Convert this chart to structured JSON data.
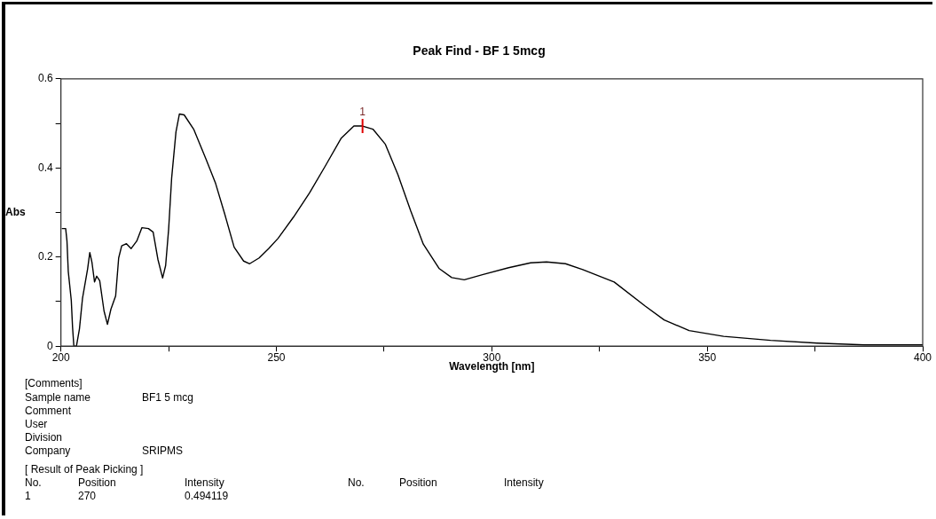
{
  "chart_data": {
    "type": "line",
    "title": "Peak Find - BF 1 5mcg",
    "xlabel": "Wavelength [nm]",
    "ylabel": "Abs",
    "x": [
      200.2,
      201.1,
      201.4,
      201.7,
      202.4,
      202.7,
      203,
      203.6,
      204.3,
      205,
      206.2,
      206.7,
      207.2,
      207.8,
      208.3,
      209,
      210,
      210.8,
      211.6,
      212.7,
      213.4,
      214.1,
      215.2,
      216.3,
      217.6,
      218.8,
      220.3,
      221.4,
      222.5,
      223.6,
      224.3,
      225,
      225.7,
      226.7,
      227.5,
      228.6,
      230.8,
      233.7,
      235.9,
      238,
      240.2,
      242.4,
      243.8,
      246,
      248.2,
      250.4,
      254,
      257.7,
      261.4,
      265,
      268,
      270,
      272.4,
      275.3,
      278.2,
      281.2,
      284.1,
      287.8,
      290.7,
      293.6,
      298,
      303.9,
      309,
      312.7,
      317.1,
      321.1,
      328.4,
      335.6,
      340,
      345.8,
      353.8,
      364.7,
      375.5,
      386.4,
      400
    ],
    "series": [
      {
        "color": "#000000",
        "values": [
          0.264,
          0.264,
          0.236,
          0.168,
          0.103,
          0.042,
          0,
          0,
          0.039,
          0.107,
          0.174,
          0.21,
          0.188,
          0.144,
          0.157,
          0.147,
          0.079,
          0.049,
          0.083,
          0.113,
          0.198,
          0.225,
          0.23,
          0.219,
          0.236,
          0.266,
          0.264,
          0.256,
          0.195,
          0.153,
          0.181,
          0.263,
          0.378,
          0.481,
          0.521,
          0.519,
          0.487,
          0.419,
          0.365,
          0.297,
          0.222,
          0.191,
          0.185,
          0.198,
          0.219,
          0.242,
          0.29,
          0.344,
          0.405,
          0.466,
          0.494,
          0.494,
          0.487,
          0.453,
          0.385,
          0.303,
          0.229,
          0.174,
          0.154,
          0.149,
          0.161,
          0.176,
          0.187,
          0.189,
          0.185,
          0.172,
          0.144,
          0.09,
          0.059,
          0.035,
          0.022,
          0.013,
          0.007,
          0.003,
          0.003
        ]
      }
    ],
    "xlim": [
      200,
      400
    ],
    "xticks": [
      200,
      {
        "value": 225,
        "label": null
      },
      250,
      {
        "value": 275,
        "label": null
      },
      300,
      {
        "value": 325,
        "label": null
      },
      350,
      {
        "value": 375,
        "label": null
      },
      400
    ],
    "ylim": [
      0,
      0.6
    ],
    "yticks": [
      0,
      {
        "value": 0.1,
        "label": null
      },
      0.2,
      {
        "value": 0.3,
        "label": null
      },
      0.4,
      {
        "value": 0.5,
        "label": null
      },
      0.6
    ],
    "marker": "none",
    "line_style": "solid",
    "legend": false,
    "grid": false,
    "annotations": [
      {
        "text": "1",
        "x": 270,
        "y": 0.494119
      },
      "[Comments]",
      "Sample name",
      "BF1 5 mcg",
      "Comment",
      "User",
      "Division",
      "Company",
      "SRIPMS",
      "[ Result of Peak Picking ]",
      "No.",
      "Position",
      "Intensity",
      "No.",
      "Position",
      "Intensity",
      "1",
      "270",
      "0.494119"
    ]
  }
}
